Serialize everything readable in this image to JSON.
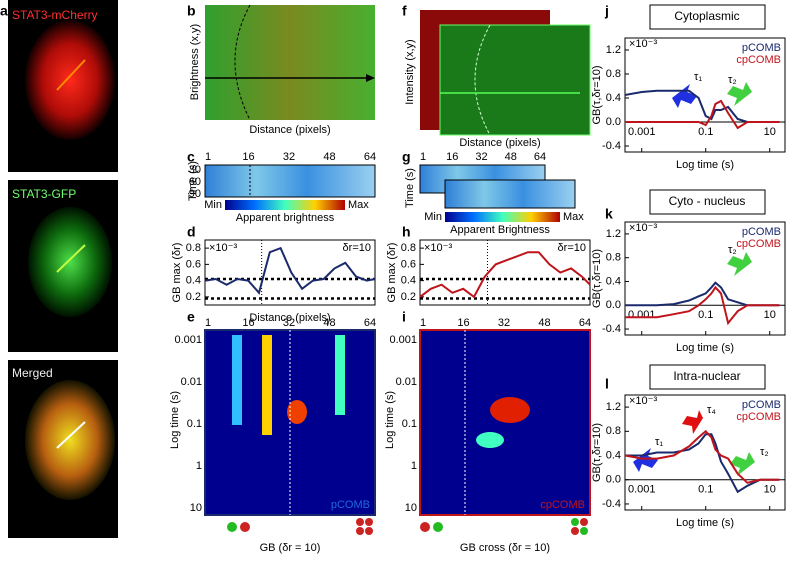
{
  "figure": {
    "panel_labels": [
      "a",
      "b",
      "c",
      "d",
      "e",
      "f",
      "g",
      "h",
      "i",
      "j",
      "k",
      "l"
    ],
    "a": {
      "labels": [
        "STAT3-mCherry",
        "STAT3-GFP",
        "Merged"
      ]
    },
    "b": {
      "y_label": "Brightness (x,y)",
      "x_label": "Distance (pixels)"
    },
    "c": {
      "x_ticks": [
        "1",
        "16",
        "32",
        "48",
        "64"
      ],
      "y_label": "Time (s)",
      "y_ticks": [
        "30",
        "60",
        "90"
      ],
      "colorbar": [
        "Min",
        "Max"
      ],
      "colorbar_label": "Apparent brightness"
    },
    "e": {
      "x_ticks": [
        "1",
        "16",
        "32",
        "48",
        "64"
      ],
      "y_label": "Log time (s)",
      "y_ticks": [
        "0.001",
        "0.01",
        "0.1",
        "1",
        "10"
      ],
      "tag": "pCOMB",
      "x_label": "GB (δr = 10)"
    },
    "f": {
      "y_label": "Intensity (x,y)",
      "x_label": "Distance (pixels)"
    },
    "g": {
      "x_ticks": [
        "1",
        "16",
        "32",
        "48",
        "64"
      ],
      "y_label": "Time (s)",
      "colorbar": [
        "Min",
        "Max"
      ],
      "colorbar_label": "Apparent Brightness"
    },
    "i": {
      "x_ticks": [
        "1",
        "16",
        "32",
        "48",
        "64"
      ],
      "y_label": "Log time (s)",
      "y_ticks": [
        "0.001",
        "0.01",
        "0.1",
        "1",
        "10"
      ],
      "tag": "cpCOMB",
      "x_label": "GB cross (δr = 10)"
    },
    "j": {
      "title": "Cytoplasmic",
      "annotations": [
        "τ₁",
        "τ₂"
      ]
    },
    "k": {
      "title": "Cyto - nucleus",
      "annotations": [
        "τ₂"
      ]
    },
    "l": {
      "title": "Intra-nuclear",
      "annotations": [
        "τ₁",
        "τ₄",
        "τ₂"
      ]
    }
  },
  "chart_data": [
    {
      "type": "line",
      "multiplier": "×10⁻³",
      "annotation": "δr=10",
      "y_label": "GB max (δr)",
      "x_label": "Distance (pixels)",
      "x": [
        1,
        5,
        9,
        13,
        17,
        21,
        25,
        29,
        33,
        37,
        41,
        45,
        49,
        53,
        57,
        61,
        64
      ],
      "xlim": [
        1,
        64
      ],
      "ylim": [
        0.1,
        0.9
      ],
      "yticks": [
        0.2,
        0.4,
        0.6,
        0.8
      ],
      "hlines": [
        0.42,
        0.18
      ],
      "vline": 22,
      "series": [
        {
          "name": "pCOMB",
          "color": "#1a2a6c",
          "values": [
            0.4,
            0.42,
            0.35,
            0.42,
            0.4,
            0.25,
            0.75,
            0.8,
            0.5,
            0.3,
            0.4,
            0.42,
            0.55,
            0.62,
            0.45,
            0.4,
            0.42
          ]
        }
      ]
    },
    {
      "type": "line",
      "multiplier": "×10⁻³",
      "annotation": "δr=10",
      "y_label": "GB max (δr)",
      "x": [
        1,
        5,
        9,
        13,
        17,
        21,
        25,
        29,
        33,
        37,
        41,
        45,
        49,
        53,
        57,
        61,
        64
      ],
      "xlim": [
        1,
        64
      ],
      "ylim": [
        0.1,
        0.9
      ],
      "yticks": [
        0.2,
        0.4,
        0.6,
        0.8
      ],
      "hlines": [
        0.42,
        0.18
      ],
      "vline": 26,
      "series": [
        {
          "name": "cpCOMB",
          "color": "#c0141c",
          "values": [
            0.2,
            0.3,
            0.35,
            0.25,
            0.3,
            0.2,
            0.45,
            0.6,
            0.65,
            0.7,
            0.75,
            0.75,
            0.6,
            0.5,
            0.55,
            0.45,
            0.35
          ]
        }
      ]
    },
    {
      "type": "line",
      "log_x": true,
      "multiplier": "×10⁻³",
      "y_label": "GB(τ,δr=10)",
      "x_label": "Log time (s)",
      "x": [
        0.0003,
        0.001,
        0.003,
        0.01,
        0.03,
        0.06,
        0.1,
        0.15,
        0.2,
        0.3,
        0.5,
        1,
        2,
        5,
        10,
        20
      ],
      "xlim": [
        0.0003,
        30
      ],
      "xticks": [
        0.001,
        0.1,
        10
      ],
      "ylim": [
        -0.5,
        1.4
      ],
      "yticks": [
        -0.4,
        {
          "value": 0,
          "label": "0.0"
        },
        0.4,
        0.8,
        1.2
      ],
      "series": [
        {
          "name": "pCOMB",
          "color": "#1a2a6c",
          "values": [
            0.45,
            0.5,
            0.52,
            0.52,
            0.52,
            0.4,
            0.1,
            0.05,
            0.2,
            0.2,
            0.25,
            0.05,
            0,
            0,
            0,
            0
          ]
        },
        {
          "name": "cpCOMB",
          "color": "#c0141c",
          "values": [
            0,
            0,
            0,
            0,
            0,
            0,
            -0.05,
            0.1,
            0.3,
            0.35,
            0.15,
            -0.1,
            0,
            0,
            0,
            0
          ]
        }
      ]
    },
    {
      "type": "line",
      "log_x": true,
      "multiplier": "×10⁻³",
      "y_label": "GB(τ,δr=10)",
      "x_label": "Log time (s)",
      "x": [
        0.0003,
        0.001,
        0.003,
        0.01,
        0.03,
        0.06,
        0.1,
        0.15,
        0.2,
        0.3,
        0.5,
        1,
        2,
        5,
        10,
        20
      ],
      "xlim": [
        0.0003,
        30
      ],
      "xticks": [
        0.001,
        0.1,
        10
      ],
      "ylim": [
        -0.5,
        1.4
      ],
      "yticks": [
        -0.4,
        {
          "value": 0,
          "label": "0.0"
        },
        0.4,
        0.8,
        1.2
      ],
      "series": [
        {
          "name": "pCOMB",
          "color": "#1a2a6c",
          "values": [
            0,
            0,
            0,
            0.02,
            0.08,
            0.15,
            0.2,
            0.3,
            0.38,
            0.3,
            0.1,
            0.05,
            0,
            0,
            0,
            0
          ]
        },
        {
          "name": "cpCOMB",
          "color": "#c0141c",
          "values": [
            -0.2,
            -0.2,
            -0.2,
            -0.15,
            -0.1,
            0,
            0.1,
            0.2,
            0.3,
            0.2,
            -0.3,
            -0.1,
            0,
            0,
            0,
            0
          ]
        }
      ]
    },
    {
      "type": "line",
      "log_x": true,
      "multiplier": "×10⁻³",
      "y_label": "GB(τ,δr=10)",
      "x_label": "Log time (s)",
      "x": [
        0.0003,
        0.001,
        0.003,
        0.01,
        0.03,
        0.06,
        0.1,
        0.15,
        0.2,
        0.3,
        0.5,
        1,
        2,
        5,
        10,
        20
      ],
      "xlim": [
        0.0003,
        30
      ],
      "xticks": [
        0.001,
        0.1,
        10
      ],
      "ylim": [
        -0.5,
        1.4
      ],
      "yticks": [
        -0.4,
        {
          "value": 0,
          "label": "0.0"
        },
        0.4,
        0.8,
        1.2
      ],
      "series": [
        {
          "name": "pCOMB",
          "color": "#1a2a6c",
          "values": [
            0.4,
            0.4,
            0.45,
            0.45,
            0.5,
            0.6,
            0.75,
            0.75,
            0.6,
            0.3,
            0.1,
            -0.2,
            -0.1,
            0,
            0,
            0
          ]
        },
        {
          "name": "cpCOMB",
          "color": "#c0141c",
          "values": [
            0.4,
            0.35,
            0.35,
            0.4,
            0.55,
            0.7,
            0.8,
            0.7,
            0.5,
            0.4,
            0.35,
            0.1,
            -0.05,
            0,
            0,
            0
          ]
        }
      ]
    }
  ]
}
